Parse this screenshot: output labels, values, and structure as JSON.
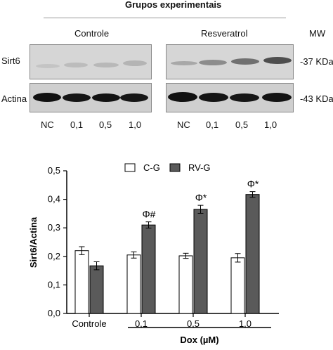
{
  "header": {
    "title": "Grupos experimentais",
    "group_controle": "Controle",
    "group_resveratrol": "Resveratrol",
    "mw_label": "MW"
  },
  "blot": {
    "row_sirt6": "Sirt6",
    "row_actina": "Actina",
    "mw_sirt6": "-37 KDa",
    "mw_actina": "-43 KDa",
    "lanes_controle": [
      "NC",
      "0,1",
      "0,5",
      "1,0"
    ],
    "lanes_resveratrol": [
      "NC",
      "0,1",
      "0,5",
      "1,0"
    ]
  },
  "colors": {
    "c_g": "#ffffff",
    "rv_g": "#5a5a5a",
    "axis": "#000000"
  },
  "chart_data": {
    "type": "bar",
    "categories": [
      "Controle",
      "0,1",
      "0,5",
      "1,0"
    ],
    "series": [
      {
        "name": "C-G",
        "values": [
          0.22,
          0.205,
          0.202,
          0.195
        ],
        "errors": [
          0.014,
          0.011,
          0.009,
          0.015
        ]
      },
      {
        "name": "RV-G",
        "values": [
          0.167,
          0.31,
          0.365,
          0.417
        ],
        "errors": [
          0.014,
          0.011,
          0.014,
          0.01
        ]
      }
    ],
    "annotations": [
      "",
      "Φ#",
      "Φ*",
      "Φ*"
    ],
    "ylabel": "Sirt6/Actina",
    "xlabel": "Dox (µM)",
    "ylim": [
      0,
      0.5
    ],
    "yticks": [
      "0,0",
      "0,1",
      "0,2",
      "0,3",
      "0,4",
      "0,5"
    ],
    "legend_position": "top-center",
    "grid": false
  }
}
